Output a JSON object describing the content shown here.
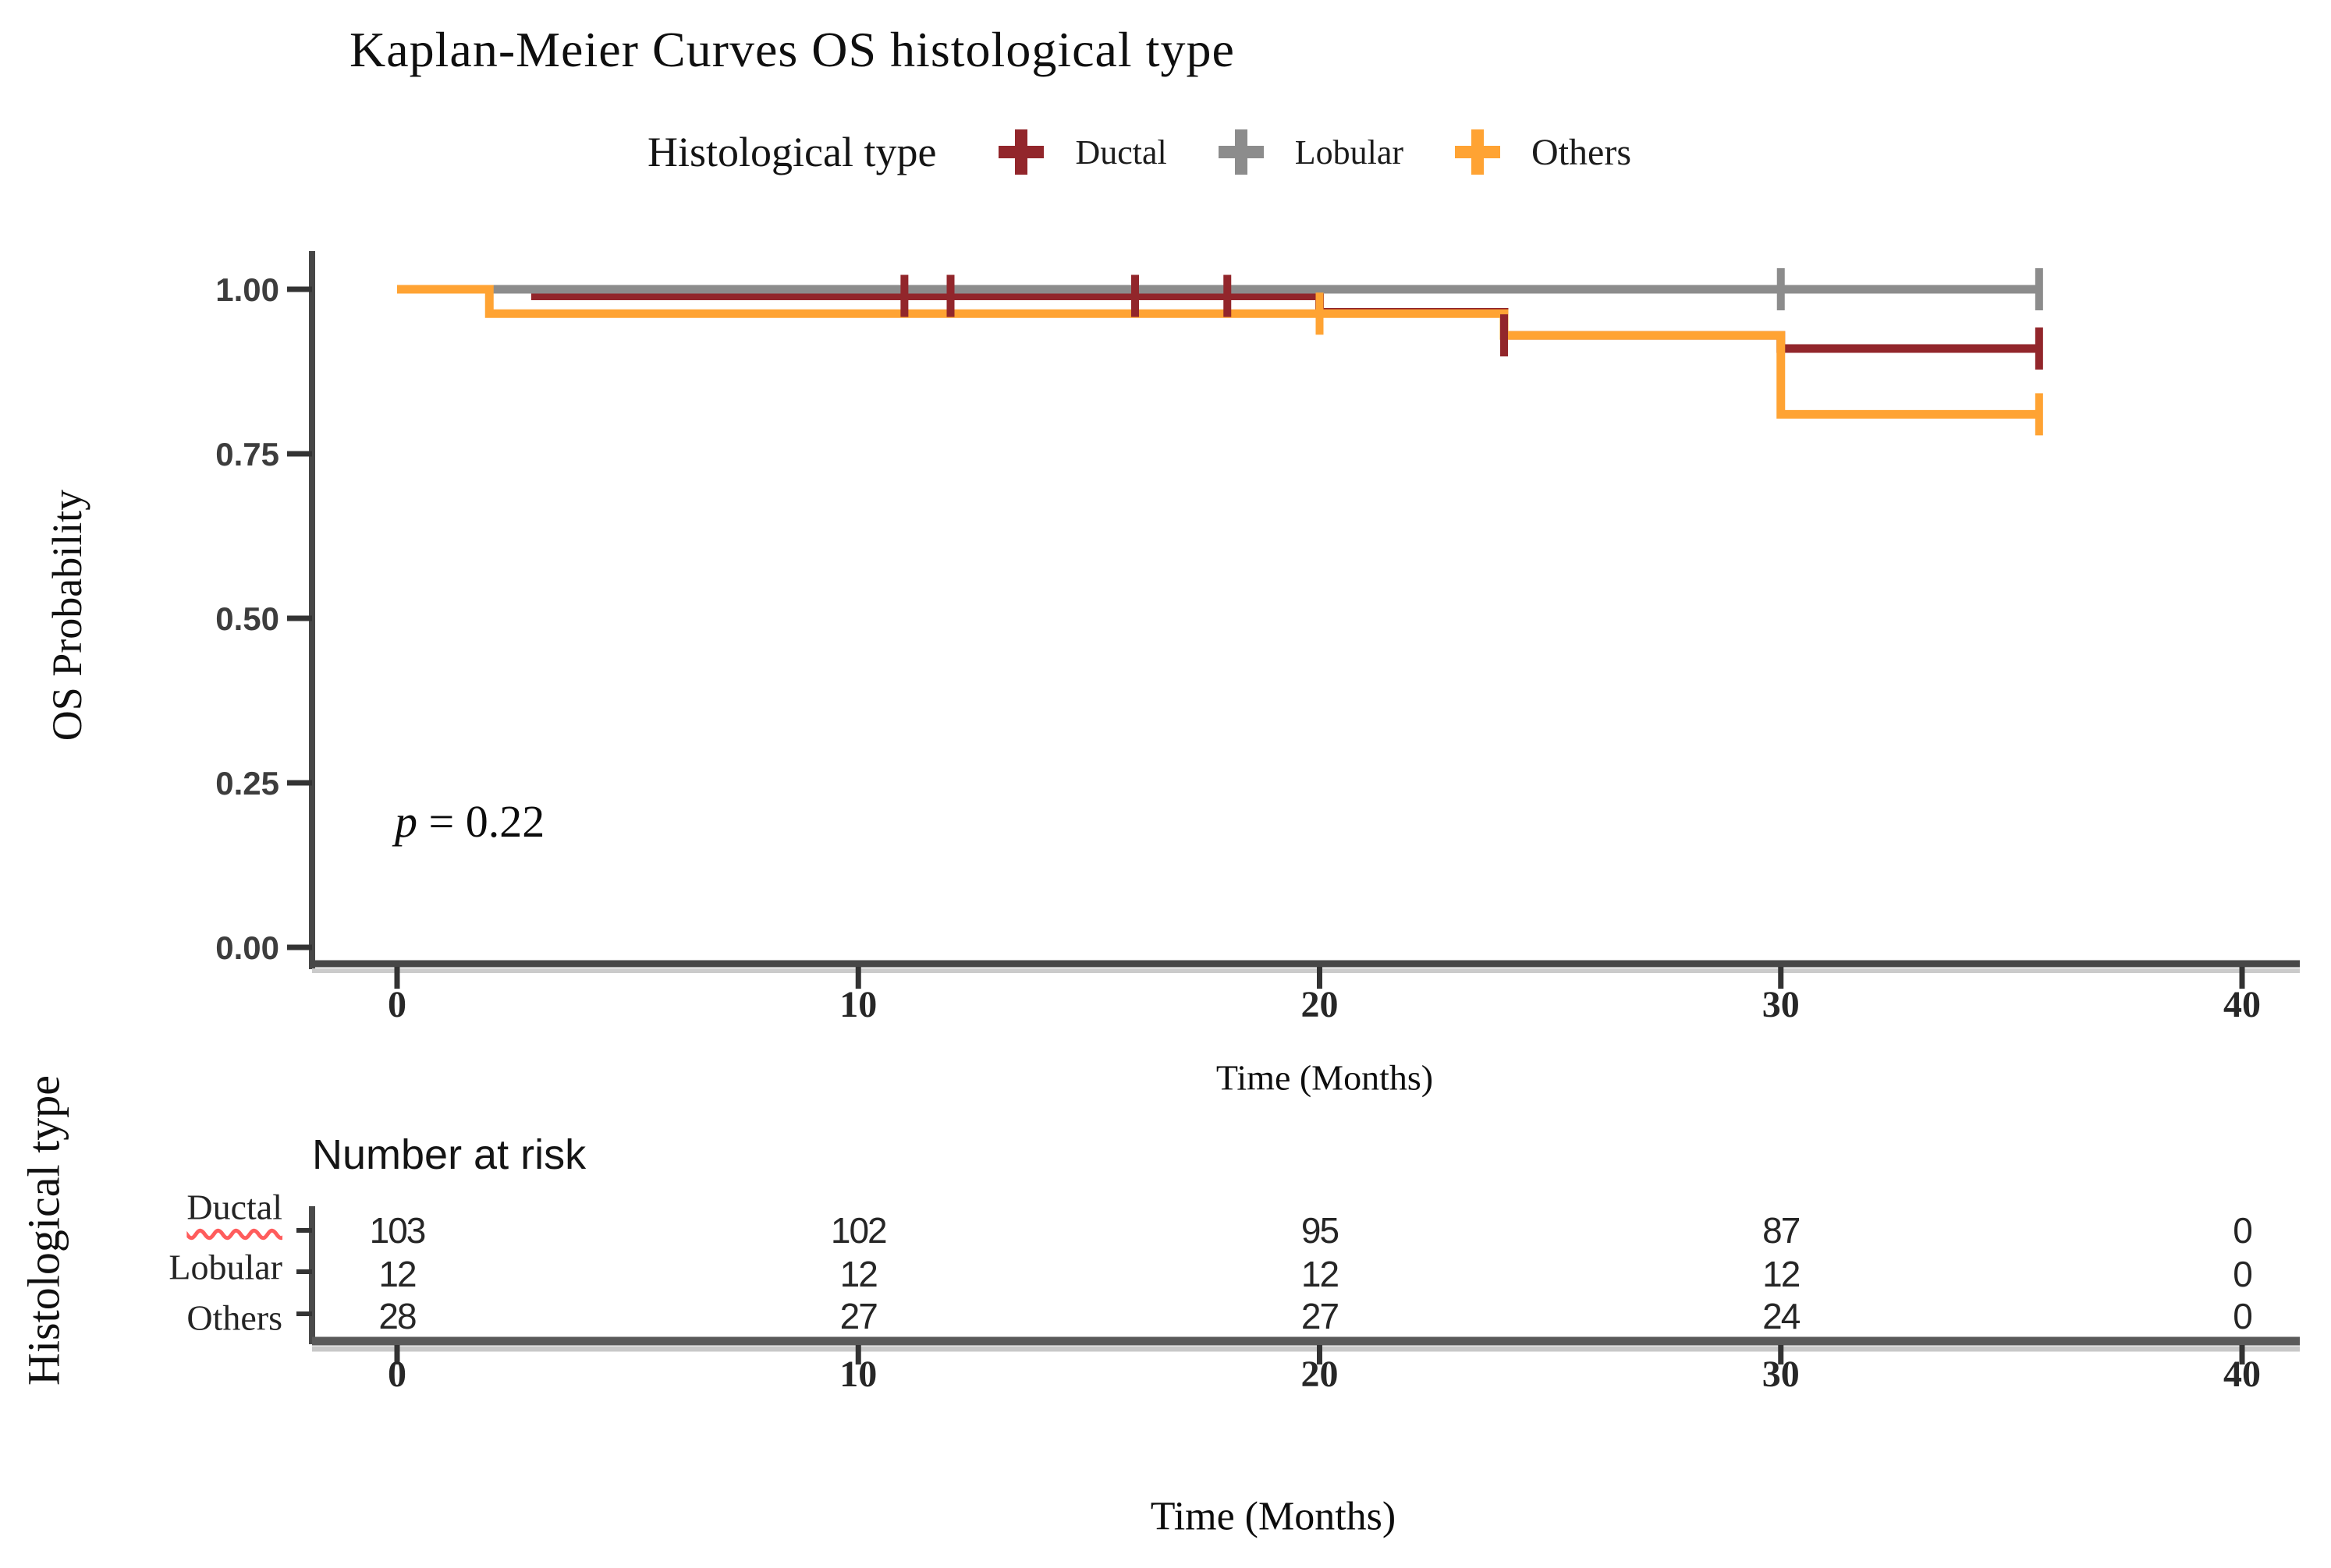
{
  "chart_data": {
    "type": "line",
    "subtype": "kaplan_meier_step",
    "title": "Kaplan-Meier Curves OS histological type",
    "xlabel": "Time (Months)",
    "ylabel": "OS Probability",
    "legend": {
      "title": "Histological type",
      "position": "top"
    },
    "x_ticks": [
      0,
      10,
      20,
      30,
      40
    ],
    "y_ticks": [
      {
        "label": "1.00",
        "value": 1.0
      },
      {
        "label": "0.75",
        "value": 0.75
      },
      {
        "label": "0.50",
        "value": 0.5
      },
      {
        "label": "0.25",
        "value": 0.25
      },
      {
        "label": "0.00",
        "value": 0.0
      }
    ],
    "xlim": [
      0,
      41.5
    ],
    "ylim": [
      0,
      1.0
    ],
    "grid": "off",
    "annotation": {
      "symbol": "p",
      "text": " = 0.22"
    },
    "series": [
      {
        "name": "Ductal",
        "color": "#92262B",
        "steps": [
          [
            0,
            1.0
          ],
          [
            3,
            0.99
          ],
          [
            20,
            0.965
          ],
          [
            24,
            0.93
          ],
          [
            30,
            0.91
          ],
          [
            35.6,
            0.91
          ]
        ],
        "censors": [
          [
            11,
            0.99
          ],
          [
            12,
            0.99
          ],
          [
            16,
            0.99
          ],
          [
            18,
            0.99
          ],
          [
            24,
            0.93
          ],
          [
            35.6,
            0.91
          ]
        ]
      },
      {
        "name": "Lobular",
        "color": "#8C8C8C",
        "steps": [
          [
            0,
            1.0
          ],
          [
            35.6,
            1.0
          ]
        ],
        "censors": [
          [
            30,
            1.0
          ],
          [
            35.6,
            1.0
          ]
        ]
      },
      {
        "name": "Others",
        "color": "#FFA333",
        "steps": [
          [
            0,
            1.0
          ],
          [
            2,
            0.963
          ],
          [
            24,
            0.93
          ],
          [
            30,
            0.81
          ],
          [
            35.6,
            0.81
          ]
        ],
        "censors": [
          [
            20,
            0.963
          ],
          [
            35.6,
            0.81
          ]
        ]
      }
    ],
    "risk_table": {
      "title": "Number at risk",
      "ylabel": "Histological type",
      "xlabel": "Time (Months)",
      "x_ticks": [
        0,
        10,
        20,
        30,
        40
      ],
      "rows": [
        {
          "label": "Ductal",
          "values": [
            "103",
            "102",
            "95",
            "87",
            "0"
          ]
        },
        {
          "label": "Lobular",
          "values": [
            "12",
            "12",
            "12",
            "12",
            "0"
          ]
        },
        {
          "label": "Others",
          "values": [
            "28",
            "27",
            "27",
            "24",
            "0"
          ]
        }
      ]
    }
  }
}
